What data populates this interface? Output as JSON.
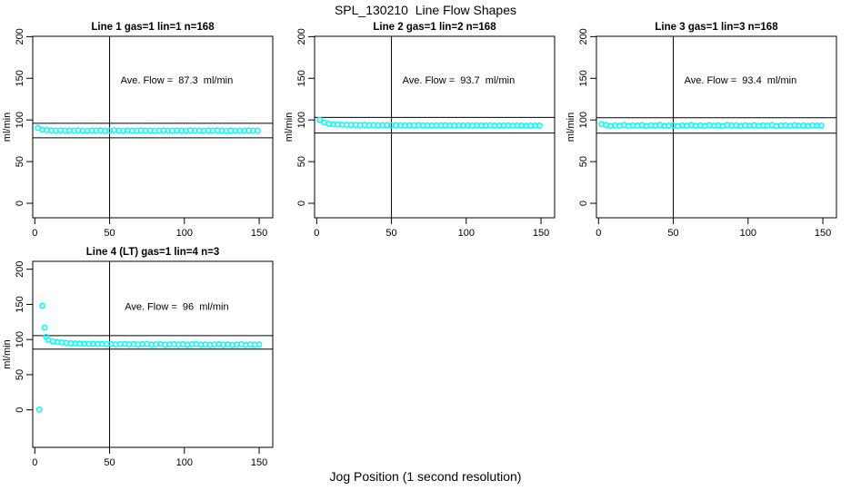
{
  "figure": {
    "title": "SPL_130210  Line Flow Shapes",
    "xlabel": "Jog Position (1 second resolution)",
    "background_color": "#ffffff",
    "point_color": "#00ffff",
    "axis_color": "#000000"
  },
  "chart_data": [
    {
      "type": "scatter",
      "title": "Line 1 gas=1 lin=1 n=168",
      "ylabel": "ml/min",
      "annotation": "Ave. Flow =  87.3  ml/min",
      "ave_flow_ml_min": 87.3,
      "n": 168,
      "xticks": [
        0,
        50,
        100,
        150
      ],
      "yticks": [
        0,
        50,
        100,
        150,
        200
      ],
      "xlim": [
        -1.4,
        159.1
      ],
      "ylim": [
        -17.4,
        200.4
      ],
      "hlines": [
        96.0,
        78.6
      ],
      "vlines": [
        50
      ],
      "grid": false,
      "legend": "none",
      "points": [
        [
          2,
          90.5
        ],
        [
          5,
          88.3
        ],
        [
          8,
          87.8
        ],
        [
          11,
          87.5
        ],
        [
          14,
          87.3
        ],
        [
          17,
          87.6
        ],
        [
          20,
          87.2
        ],
        [
          23,
          87.4
        ],
        [
          26,
          87.1
        ],
        [
          29,
          87.5
        ],
        [
          32,
          87.3
        ],
        [
          35,
          87.0
        ],
        [
          38,
          87.4
        ],
        [
          41,
          87.2
        ],
        [
          44,
          87.5
        ],
        [
          47,
          87.1
        ],
        [
          50,
          87.3
        ],
        [
          53,
          87.6
        ],
        [
          56,
          87.2
        ],
        [
          59,
          87.0
        ],
        [
          62,
          87.4
        ],
        [
          65,
          87.3
        ],
        [
          68,
          87.1
        ],
        [
          71,
          87.5
        ],
        [
          74,
          87.2
        ],
        [
          77,
          87.4
        ],
        [
          80,
          87.0
        ],
        [
          83,
          87.3
        ],
        [
          86,
          87.5
        ],
        [
          89,
          87.1
        ],
        [
          92,
          87.2
        ],
        [
          95,
          87.4
        ],
        [
          98,
          87.3
        ],
        [
          101,
          87.0
        ],
        [
          104,
          87.5
        ],
        [
          107,
          87.2
        ],
        [
          110,
          87.3
        ],
        [
          113,
          87.1
        ],
        [
          116,
          87.4
        ],
        [
          119,
          87.2
        ],
        [
          122,
          87.5
        ],
        [
          125,
          87.3
        ],
        [
          128,
          87.0
        ],
        [
          131,
          87.4
        ],
        [
          134,
          87.1
        ],
        [
          137,
          87.3
        ],
        [
          140,
          87.2
        ],
        [
          143,
          87.5
        ],
        [
          146,
          87.3
        ],
        [
          149,
          87.2
        ]
      ]
    },
    {
      "type": "scatter",
      "title": "Line 2 gas=1 lin=2 n=168",
      "ylabel": "ml/min",
      "annotation": "Ave. Flow =  93.7  ml/min",
      "ave_flow_ml_min": 93.7,
      "n": 168,
      "xticks": [
        0,
        50,
        100,
        150
      ],
      "yticks": [
        0,
        50,
        100,
        150,
        200
      ],
      "xlim": [
        -1.4,
        159.1
      ],
      "ylim": [
        -17.4,
        200.4
      ],
      "hlines": [
        103.1,
        84.3
      ],
      "vlines": [
        50
      ],
      "grid": false,
      "legend": "none",
      "points": [
        [
          2,
          100.2
        ],
        [
          5,
          97.0
        ],
        [
          8,
          95.5
        ],
        [
          11,
          94.8
        ],
        [
          14,
          94.5
        ],
        [
          17,
          94.3
        ],
        [
          20,
          94.2
        ],
        [
          23,
          94.0
        ],
        [
          26,
          94.1
        ],
        [
          29,
          93.9
        ],
        [
          32,
          94.0
        ],
        [
          35,
          93.8
        ],
        [
          38,
          93.9
        ],
        [
          41,
          93.7
        ],
        [
          44,
          93.8
        ],
        [
          47,
          93.9
        ],
        [
          50,
          93.6
        ],
        [
          53,
          93.8
        ],
        [
          56,
          93.7
        ],
        [
          59,
          93.5
        ],
        [
          62,
          93.7
        ],
        [
          65,
          93.6
        ],
        [
          68,
          93.8
        ],
        [
          71,
          93.5
        ],
        [
          74,
          93.6
        ],
        [
          77,
          93.4
        ],
        [
          80,
          93.6
        ],
        [
          83,
          93.5
        ],
        [
          86,
          93.7
        ],
        [
          89,
          93.4
        ],
        [
          92,
          93.5
        ],
        [
          95,
          93.6
        ],
        [
          98,
          93.3
        ],
        [
          101,
          93.5
        ],
        [
          104,
          93.4
        ],
        [
          107,
          93.6
        ],
        [
          110,
          93.3
        ],
        [
          113,
          93.4
        ],
        [
          116,
          93.5
        ],
        [
          119,
          93.2
        ],
        [
          122,
          93.4
        ],
        [
          125,
          93.3
        ],
        [
          128,
          93.5
        ],
        [
          131,
          93.2
        ],
        [
          134,
          93.3
        ],
        [
          137,
          93.4
        ],
        [
          140,
          93.1
        ],
        [
          143,
          93.3
        ],
        [
          146,
          93.2
        ],
        [
          149,
          93.3
        ]
      ]
    },
    {
      "type": "scatter",
      "title": "Line 3 gas=1 lin=3 n=168",
      "ylabel": "ml/min",
      "annotation": "Ave. Flow =  93.4  ml/min",
      "ave_flow_ml_min": 93.4,
      "n": 168,
      "xticks": [
        0,
        50,
        100,
        150
      ],
      "yticks": [
        0,
        50,
        100,
        150,
        200
      ],
      "xlim": [
        -1.4,
        159.1
      ],
      "ylim": [
        -17.4,
        200.4
      ],
      "hlines": [
        102.7,
        84.1
      ],
      "vlines": [
        50
      ],
      "grid": false,
      "legend": "none",
      "points": [
        [
          2,
          95.0
        ],
        [
          5,
          94.0
        ],
        [
          8,
          92.8
        ],
        [
          11,
          93.6
        ],
        [
          14,
          93.1
        ],
        [
          17,
          94.1
        ],
        [
          20,
          92.9
        ],
        [
          23,
          93.5
        ],
        [
          26,
          93.2
        ],
        [
          29,
          93.9
        ],
        [
          32,
          92.8
        ],
        [
          35,
          93.6
        ],
        [
          38,
          93.3
        ],
        [
          41,
          94.0
        ],
        [
          44,
          92.9
        ],
        [
          47,
          93.4
        ],
        [
          50,
          93.7
        ],
        [
          53,
          92.8
        ],
        [
          56,
          93.5
        ],
        [
          59,
          93.1
        ],
        [
          62,
          93.9
        ],
        [
          65,
          93.0
        ],
        [
          68,
          93.6
        ],
        [
          71,
          92.9
        ],
        [
          74,
          93.8
        ],
        [
          77,
          93.2
        ],
        [
          80,
          93.5
        ],
        [
          83,
          92.8
        ],
        [
          86,
          94.0
        ],
        [
          89,
          93.3
        ],
        [
          92,
          93.6
        ],
        [
          95,
          92.9
        ],
        [
          98,
          93.7
        ],
        [
          101,
          93.1
        ],
        [
          104,
          93.8
        ],
        [
          107,
          93.0
        ],
        [
          110,
          93.5
        ],
        [
          113,
          93.2
        ],
        [
          116,
          93.9
        ],
        [
          119,
          92.8
        ],
        [
          122,
          93.4
        ],
        [
          125,
          93.6
        ],
        [
          128,
          93.0
        ],
        [
          131,
          93.8
        ],
        [
          134,
          93.1
        ],
        [
          137,
          93.5
        ],
        [
          140,
          92.9
        ],
        [
          143,
          93.7
        ],
        [
          146,
          93.2
        ],
        [
          149,
          93.4
        ]
      ]
    },
    {
      "type": "scatter",
      "title": "Line 4 (LT) gas=1 lin=4 n=3",
      "ylabel": "ml/min",
      "annotation": "Ave. Flow =  96  ml/min",
      "ave_flow_ml_min": 96,
      "n": 3,
      "xticks": [
        0,
        50,
        100,
        150
      ],
      "yticks": [
        0,
        50,
        100,
        150,
        200
      ],
      "xlim": [
        -1.4,
        159.1
      ],
      "ylim": [
        -53.3,
        211.2
      ],
      "hlines": [
        105.6,
        86.4
      ],
      "vlines": [
        50
      ],
      "grid": false,
      "legend": "none",
      "points": [
        [
          3,
          0.5
        ],
        [
          5,
          148
        ],
        [
          6.5,
          117
        ],
        [
          7.5,
          104
        ],
        [
          9,
          99.5
        ],
        [
          12,
          97.5
        ],
        [
          15,
          96.5
        ],
        [
          18,
          95.8
        ],
        [
          21,
          95.2
        ],
        [
          24,
          94.8
        ],
        [
          27,
          94.5
        ],
        [
          30,
          94.2
        ],
        [
          33,
          94.0
        ],
        [
          36,
          93.8
        ],
        [
          39,
          94.1
        ],
        [
          42,
          93.6
        ],
        [
          45,
          93.9
        ],
        [
          48,
          93.4
        ],
        [
          51,
          93.7
        ],
        [
          54,
          93.2
        ],
        [
          57,
          93.6
        ],
        [
          60,
          93.8
        ],
        [
          63,
          93.1
        ],
        [
          66,
          93.5
        ],
        [
          69,
          93.0
        ],
        [
          72,
          93.4
        ],
        [
          75,
          93.7
        ],
        [
          78,
          92.9
        ],
        [
          81,
          93.3
        ],
        [
          84,
          93.6
        ],
        [
          87,
          92.8
        ],
        [
          90,
          93.2
        ],
        [
          93,
          93.5
        ],
        [
          96,
          92.9
        ],
        [
          99,
          93.4
        ],
        [
          102,
          92.7
        ],
        [
          105,
          93.1
        ],
        [
          108,
          93.5
        ],
        [
          111,
          92.8
        ],
        [
          114,
          93.2
        ],
        [
          117,
          92.6
        ],
        [
          120,
          93.0
        ],
        [
          123,
          93.4
        ],
        [
          126,
          92.7
        ],
        [
          129,
          93.1
        ],
        [
          132,
          92.5
        ],
        [
          135,
          92.9
        ],
        [
          138,
          93.3
        ],
        [
          141,
          92.6
        ],
        [
          144,
          93.0
        ],
        [
          147,
          92.8
        ],
        [
          150,
          93.1
        ]
      ]
    }
  ]
}
